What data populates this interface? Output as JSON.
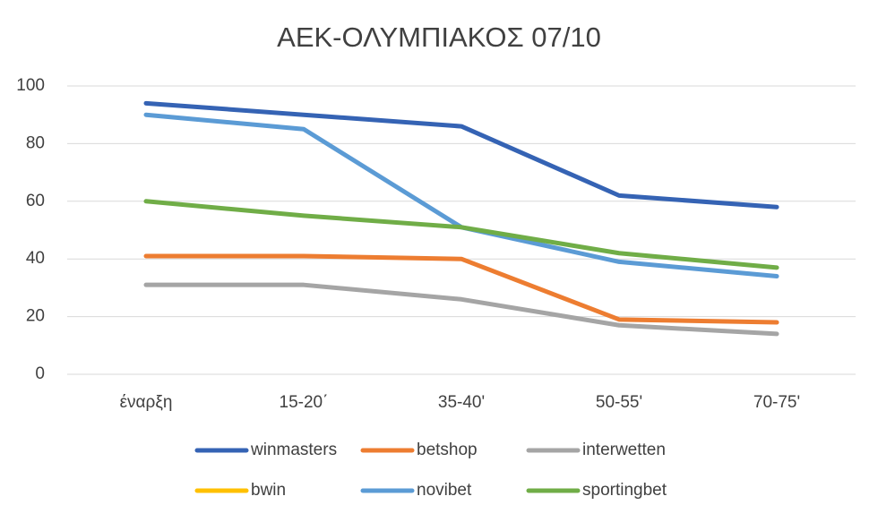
{
  "chart_data": {
    "type": "line",
    "title": "ΑΕΚ-ΟΛΥΜΠΙΑΚΟΣ 07/10",
    "categories": [
      "έναρξη",
      "15-20΄",
      "35-40'",
      "50-55'",
      "70-75'"
    ],
    "series": [
      {
        "name": "winmasters",
        "color": "#3563b4",
        "values": [
          94,
          90,
          86,
          62,
          58
        ]
      },
      {
        "name": "betshop",
        "color": "#ed7d31",
        "values": [
          41,
          41,
          40,
          19,
          18
        ]
      },
      {
        "name": "interwetten",
        "color": "#a5a5a5",
        "values": [
          31,
          31,
          26,
          17,
          14
        ]
      },
      {
        "name": "bwin",
        "color": "#ffc000",
        "values": [
          null,
          null,
          null,
          null,
          null
        ]
      },
      {
        "name": "novibet",
        "color": "#5b9bd5",
        "values": [
          90,
          85,
          51,
          39,
          34
        ]
      },
      {
        "name": "sportingbet",
        "color": "#70ad47",
        "values": [
          60,
          55,
          51,
          42,
          37
        ]
      }
    ],
    "ylim": [
      0,
      100
    ],
    "yticks": [
      0,
      20,
      40,
      60,
      80,
      100
    ],
    "grid": true,
    "legend": "bottom"
  }
}
